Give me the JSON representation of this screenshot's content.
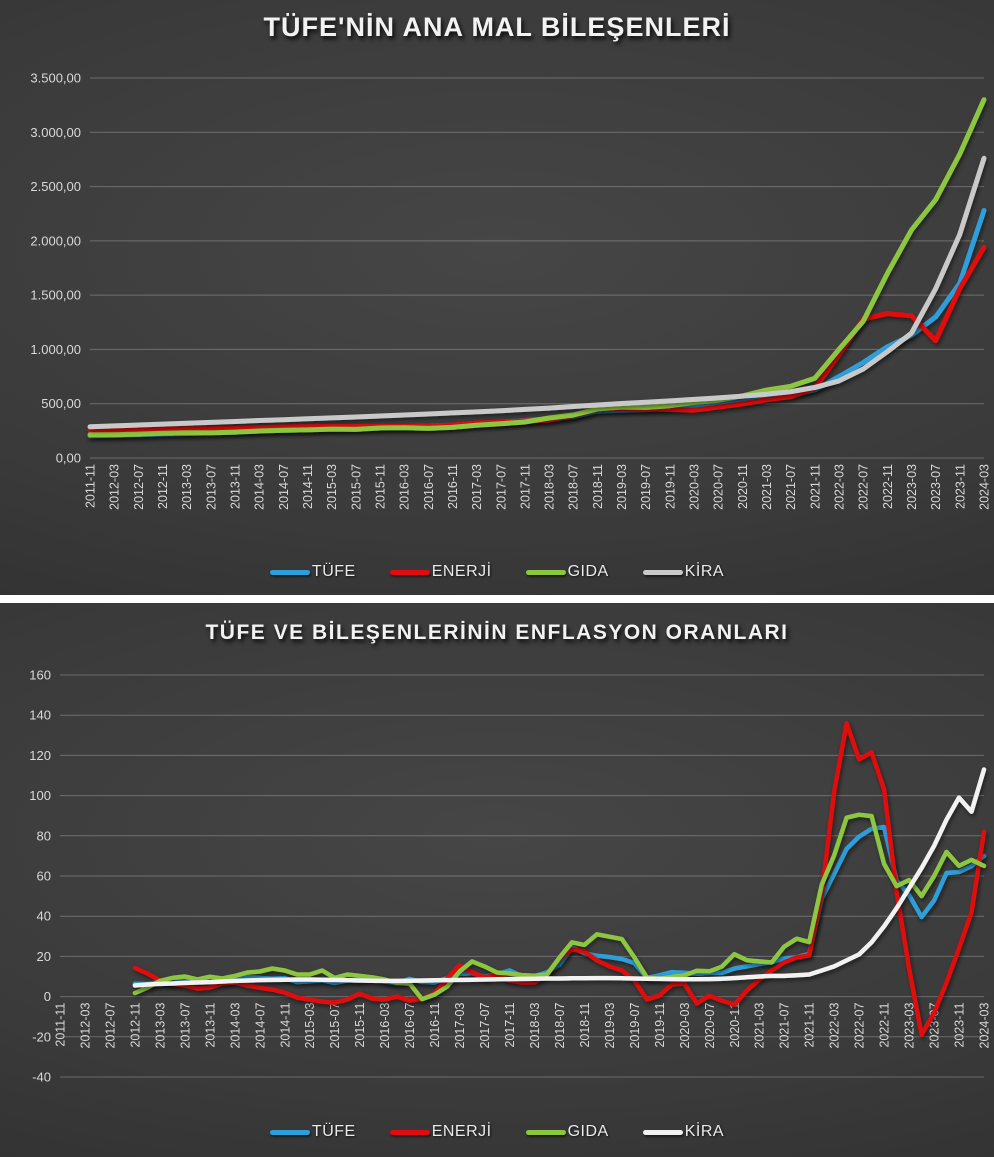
{
  "colors": {
    "panel_center": "#464646",
    "panel_edge": "#282828",
    "gridline": "rgba(255,255,255,0.25)",
    "axis_text": "#d9d9d9",
    "title_text": "#f2f2f2",
    "tufe_blue": "#2E9FDA",
    "enerji_red": "#E00C11",
    "gida_green": "#8DC63F",
    "kira_gray": "#C9C9C9",
    "kira_white": "#F2F2F2"
  },
  "chart_data": [
    {
      "type": "line",
      "title": "TÜFE'NİN ANA MAL BİLEŞENLERİ",
      "y_min": 0,
      "y_max": 3500,
      "y_tick_labels": [
        "0,00",
        "500,00",
        "1.000,00",
        "1.500,00",
        "2.000,00",
        "2.500,00",
        "3.000,00",
        "3.500,00"
      ],
      "x_labels": [
        "2011-11",
        "2012-03",
        "2012-07",
        "2012-11",
        "2013-03",
        "2013-07",
        "2013-11",
        "2014-03",
        "2014-07",
        "2014-11",
        "2015-03",
        "2015-07",
        "2015-11",
        "2016-03",
        "2016-07",
        "2016-11",
        "2017-03",
        "2017-07",
        "2017-11",
        "2018-03",
        "2018-07",
        "2018-11",
        "2019-03",
        "2019-07",
        "2019-11",
        "2020-03",
        "2020-07",
        "2020-11",
        "2021-03",
        "2021-07",
        "2021-11",
        "2022-03",
        "2022-07",
        "2022-11",
        "2023-03",
        "2023-07",
        "2023-11",
        "2024-03"
      ],
      "series": [
        {
          "name": "TÜFE",
          "color": "#2E9FDA",
          "values": [
            205,
            210,
            214,
            221,
            226,
            232,
            239,
            248,
            255,
            261,
            268,
            274,
            283,
            289,
            295,
            302,
            320,
            330,
            345,
            358,
            382,
            432,
            440,
            447,
            458,
            478,
            495,
            520,
            556,
            582,
            628,
            750,
            880,
            1025,
            1130,
            1300,
            1610,
            2280
          ]
        },
        {
          "name": "ENERJİ",
          "color": "#E00C11",
          "values": [
            252,
            258,
            262,
            266,
            268,
            270,
            273,
            281,
            286,
            289,
            291,
            289,
            293,
            291,
            295,
            303,
            322,
            330,
            342,
            348,
            392,
            450,
            448,
            452,
            448,
            440,
            468,
            498,
            536,
            565,
            645,
            950,
            1280,
            1330,
            1310,
            1080,
            1560,
            1940
          ]
        },
        {
          "name": "GIDA",
          "color": "#8DC63F",
          "values": [
            215,
            214,
            220,
            228,
            233,
            231,
            239,
            249,
            256,
            259,
            266,
            263,
            276,
            279,
            273,
            282,
            302,
            315,
            332,
            368,
            396,
            452,
            470,
            466,
            482,
            512,
            532,
            572,
            625,
            660,
            735,
            1000,
            1260,
            1700,
            2100,
            2380,
            2800,
            3300
          ]
        },
        {
          "name": "KİRA",
          "color": "#C9C9C9",
          "values": [
            287,
            296,
            304,
            312,
            320,
            328,
            336,
            345,
            353,
            361,
            369,
            378,
            387,
            396,
            405,
            415,
            425,
            436,
            448,
            460,
            474,
            488,
            502,
            514,
            526,
            540,
            554,
            570,
            588,
            612,
            650,
            710,
            820,
            980,
            1150,
            1560,
            2060,
            2760
          ]
        }
      ]
    },
    {
      "type": "line",
      "title": "TÜFE VE BİLEŞENLERİNİN ENFLASYON ORANLARI",
      "y_min": -40,
      "y_max": 160,
      "y_tick_labels": [
        "-40",
        "-20",
        "0",
        "20",
        "40",
        "60",
        "80",
        "100",
        "120",
        "140",
        "160"
      ],
      "x_labels": [
        "2011-11",
        "2012-03",
        "2012-07",
        "2012-11",
        "2013-03",
        "2013-07",
        "2013-11",
        "2014-03",
        "2014-07",
        "2014-11",
        "2015-03",
        "2015-07",
        "2015-11",
        "2016-03",
        "2016-07",
        "2016-11",
        "2017-03",
        "2017-07",
        "2017-11",
        "2018-03",
        "2018-07",
        "2018-11",
        "2019-03",
        "2019-07",
        "2019-11",
        "2020-03",
        "2020-07",
        "2020-11",
        "2021-03",
        "2021-07",
        "2021-11",
        "2022-03",
        "2022-07",
        "2022-11",
        "2023-03",
        "2023-07",
        "2023-11",
        "2024-03"
      ],
      "series": [
        {
          "name": "TÜFE",
          "color": "#2E9FDA",
          "values": [
            null,
            null,
            null,
            null,
            null,
            null,
            6.4,
            6.2,
            7.3,
            6.5,
            8.9,
            7.9,
            7.3,
            7.8,
            8.4,
            9.7,
            9.3,
            8.9,
            9.2,
            7.2,
            7.6,
            8.1,
            6.8,
            8.0,
            8.1,
            9.6,
            7.5,
            6.6,
            8.8,
            7.3,
            7.0,
            9.2,
            11.3,
            11.7,
            9.8,
            11.2,
            13.0,
            10.3,
            10.2,
            12.1,
            15.9,
            24.5,
            21.6,
            20.3,
            19.7,
            18.7,
            16.7,
            9.3,
            10.6,
            12.2,
            11.9,
            11.4,
            11.8,
            11.8,
            14.0,
            15.0,
            16.2,
            17.1,
            19.0,
            19.6,
            21.3,
            48.7,
            61.1,
            73.5,
            79.6,
            83.5,
            84.4,
            57.7,
            50.5,
            39.6,
            47.8,
            61.5,
            62.0,
            64.9,
            70.0
          ]
        },
        {
          "name": "ENERJİ",
          "color": "#E00C11",
          "values": [
            null,
            null,
            null,
            null,
            null,
            null,
            14.3,
            11.5,
            8.0,
            6.5,
            5.5,
            4.0,
            4.5,
            6.5,
            7.0,
            5.5,
            4.5,
            3.5,
            2.0,
            -0.5,
            -1.5,
            -2.5,
            -3.0,
            -1.5,
            1.5,
            -1.0,
            -1.5,
            0.0,
            -2.0,
            -1.0,
            1.5,
            9.0,
            15.5,
            12.0,
            9.5,
            11.0,
            8.0,
            7.0,
            7.0,
            11.0,
            19.0,
            23.5,
            22.5,
            18.0,
            15.0,
            13.0,
            8.0,
            -1.5,
            0.5,
            6.0,
            6.5,
            -3.5,
            0.5,
            -2.0,
            -4.0,
            3.0,
            8.5,
            13.0,
            17.0,
            19.5,
            20.5,
            51.0,
            102.0,
            136.0,
            118.0,
            121.5,
            103.0,
            52.0,
            14.0,
            -19.0,
            -8.0,
            7.0,
            24.0,
            42.0,
            82.0
          ]
        },
        {
          "name": "GIDA",
          "color": "#8DC63F",
          "values": [
            null,
            null,
            null,
            null,
            null,
            null,
            1.8,
            4.5,
            7.8,
            9.3,
            10.0,
            8.5,
            9.9,
            9.0,
            10.3,
            12.0,
            12.5,
            14.0,
            13.0,
            11.0,
            11.0,
            13.0,
            9.3,
            11.0,
            10.3,
            9.6,
            8.5,
            6.8,
            6.5,
            -1.3,
            1.0,
            5.0,
            12.5,
            17.5,
            15.0,
            12.0,
            11.5,
            10.7,
            10.4,
            11.0,
            19.4,
            27.0,
            25.7,
            31.0,
            29.8,
            28.6,
            19.5,
            9.5,
            8.9,
            9.8,
            10.5,
            12.9,
            12.6,
            14.9,
            21.1,
            18.1,
            17.5,
            17.0,
            24.9,
            28.8,
            27.1,
            55.6,
            70.3,
            89.0,
            90.5,
            89.8,
            66.0,
            55.0,
            58.0,
            50.0,
            60.0,
            72.0,
            65.0,
            68.0,
            65.0
          ]
        },
        {
          "name": "KİRA",
          "color": "#F2F2F2",
          "values": [
            null,
            null,
            null,
            null,
            null,
            null,
            5.5,
            6.0,
            6.3,
            6.5,
            6.8,
            7.0,
            7.2,
            7.5,
            7.8,
            8.0,
            8.2,
            8.3,
            8.4,
            8.5,
            8.5,
            8.4,
            8.3,
            8.2,
            8.0,
            7.9,
            7.8,
            7.8,
            7.9,
            8.0,
            8.1,
            8.2,
            8.3,
            8.4,
            8.5,
            8.6,
            8.7,
            8.8,
            8.9,
            9.0,
            9.0,
            9.1,
            9.1,
            9.2,
            9.2,
            9.1,
            9.0,
            8.9,
            8.8,
            8.7,
            8.6,
            8.6,
            8.7,
            8.9,
            9.2,
            9.6,
            10.0,
            10.3,
            10.3,
            10.6,
            11.0,
            13.0,
            15.0,
            18.0,
            21.0,
            27.0,
            35.0,
            44.0,
            54.0,
            64.0,
            75.0,
            88.0,
            99.0,
            92.0,
            113.0
          ]
        }
      ]
    }
  ]
}
